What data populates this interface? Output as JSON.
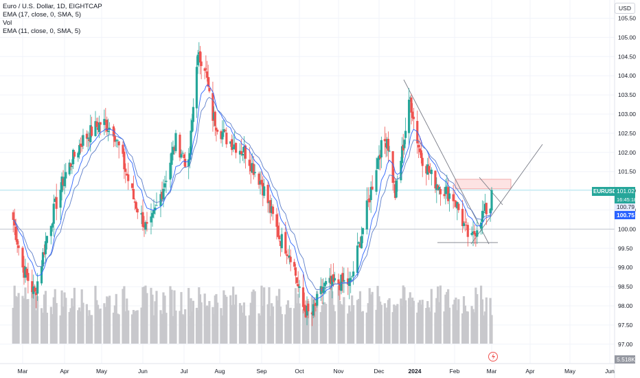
{
  "header": {
    "title": "Euro / U.S. Dollar, 1D, EIGHTCAP",
    "indicators": [
      "EMA (17, close, 0, SMA, 5)",
      "Vol",
      "EMA (11, close, 0, SMA, 5)"
    ]
  },
  "price_axis": {
    "currency": "USD",
    "ticks": [
      "105.50",
      "105.00",
      "104.50",
      "104.00",
      "103.50",
      "103.00",
      "102.50",
      "102.00",
      "101.50",
      "101.00",
      "100.50",
      "100.00",
      "99.50",
      "99.00",
      "98.50",
      "98.00",
      "97.50",
      "97.00"
    ]
  },
  "time_axis": {
    "ticks": [
      "Mar",
      "Apr",
      "May",
      "Jun",
      "Jul",
      "Aug",
      "Sep",
      "Oct",
      "Nov",
      "Dec",
      "2024",
      "Feb",
      "Mar",
      "Apr",
      "May",
      "Jun"
    ]
  },
  "badges": {
    "symbol": "EURUSD",
    "price": "101.02",
    "countdown": "16:45:18",
    "ema_a": "100.79",
    "ema_b": "100.75",
    "volume": "5.518K"
  },
  "colors": {
    "up": "#26a69a",
    "down": "#ef5350",
    "ema_fast": "#2962ff",
    "ema_slow": "#5b7cc8",
    "volume": "#c8c8cc",
    "trendline": "#787b86",
    "zone_fill": "#fde3e3",
    "zone_stroke": "#ef9a9a",
    "grid": "#f0f3fa",
    "price_line": "#b2ebf2"
  },
  "chart_data": {
    "type": "candlestick",
    "title": "Euro / U.S. Dollar, 1D, EIGHTCAP",
    "ylim": [
      96.9,
      105.75
    ],
    "yticks": [
      105.5,
      105.0,
      104.5,
      104.0,
      103.5,
      103.0,
      102.5,
      102.0,
      101.5,
      101.0,
      100.5,
      100.0,
      99.5,
      99.0,
      98.5,
      98.0,
      97.5,
      97.0
    ],
    "xticks": [
      "Mar",
      "Apr",
      "May",
      "Jun",
      "Jul",
      "Aug",
      "Sep",
      "Oct",
      "Nov",
      "Dec",
      "2024",
      "Feb",
      "Mar",
      "Apr",
      "May",
      "Jun"
    ],
    "close_anchors": [
      {
        "date": "Feb 20",
        "close": 100.6
      },
      {
        "date": "Mar 1",
        "close": 99.0
      },
      {
        "date": "Mar 10",
        "close": 98.3
      },
      {
        "date": "Mar 20",
        "close": 100.0
      },
      {
        "date": "Apr 1",
        "close": 101.4
      },
      {
        "date": "Apr 15",
        "close": 102.3
      },
      {
        "date": "May 1",
        "close": 102.8
      },
      {
        "date": "May 10",
        "close": 102.6
      },
      {
        "date": "May 25",
        "close": 100.8
      },
      {
        "date": "Jun 5",
        "close": 99.9
      },
      {
        "date": "Jun 15",
        "close": 101.0
      },
      {
        "date": "Jun 25",
        "close": 102.3
      },
      {
        "date": "Jul 5",
        "close": 101.6
      },
      {
        "date": "Jul 12",
        "close": 104.4
      },
      {
        "date": "Jul 18",
        "close": 104.5
      },
      {
        "date": "Jul 25",
        "close": 103.0
      },
      {
        "date": "Aug 5",
        "close": 102.4
      },
      {
        "date": "Aug 20",
        "close": 102.0
      },
      {
        "date": "Sep 1",
        "close": 101.2
      },
      {
        "date": "Sep 15",
        "close": 99.8
      },
      {
        "date": "Sep 25",
        "close": 99.3
      },
      {
        "date": "Oct 3",
        "close": 98.0
      },
      {
        "date": "Oct 10",
        "close": 97.7
      },
      {
        "date": "Oct 20",
        "close": 98.5
      },
      {
        "date": "Nov 1",
        "close": 98.6
      },
      {
        "date": "Nov 10",
        "close": 98.6
      },
      {
        "date": "Nov 20",
        "close": 100.2
      },
      {
        "date": "Dec 1",
        "close": 102.0
      },
      {
        "date": "Dec 8",
        "close": 102.4
      },
      {
        "date": "Dec 15",
        "close": 100.9
      },
      {
        "date": "Dec 22",
        "close": 102.2
      },
      {
        "date": "Dec 28",
        "close": 103.4
      },
      {
        "date": "Jan 5",
        "close": 102.0
      },
      {
        "date": "Jan 15",
        "close": 101.3
      },
      {
        "date": "Jan 25",
        "close": 101.0
      },
      {
        "date": "Feb 1",
        "close": 100.8
      },
      {
        "date": "Feb 10",
        "close": 99.9
      },
      {
        "date": "Feb 14",
        "close": 99.7
      },
      {
        "date": "Feb 20",
        "close": 100.3
      },
      {
        "date": "Feb 28",
        "close": 100.6
      },
      {
        "date": "Mar 1",
        "close": 101.02
      }
    ],
    "horizontal_levels": [
      101.02,
      100.0,
      99.65
    ],
    "resistance_zone": [
      101.05,
      101.3
    ],
    "last_price": 101.02
  }
}
